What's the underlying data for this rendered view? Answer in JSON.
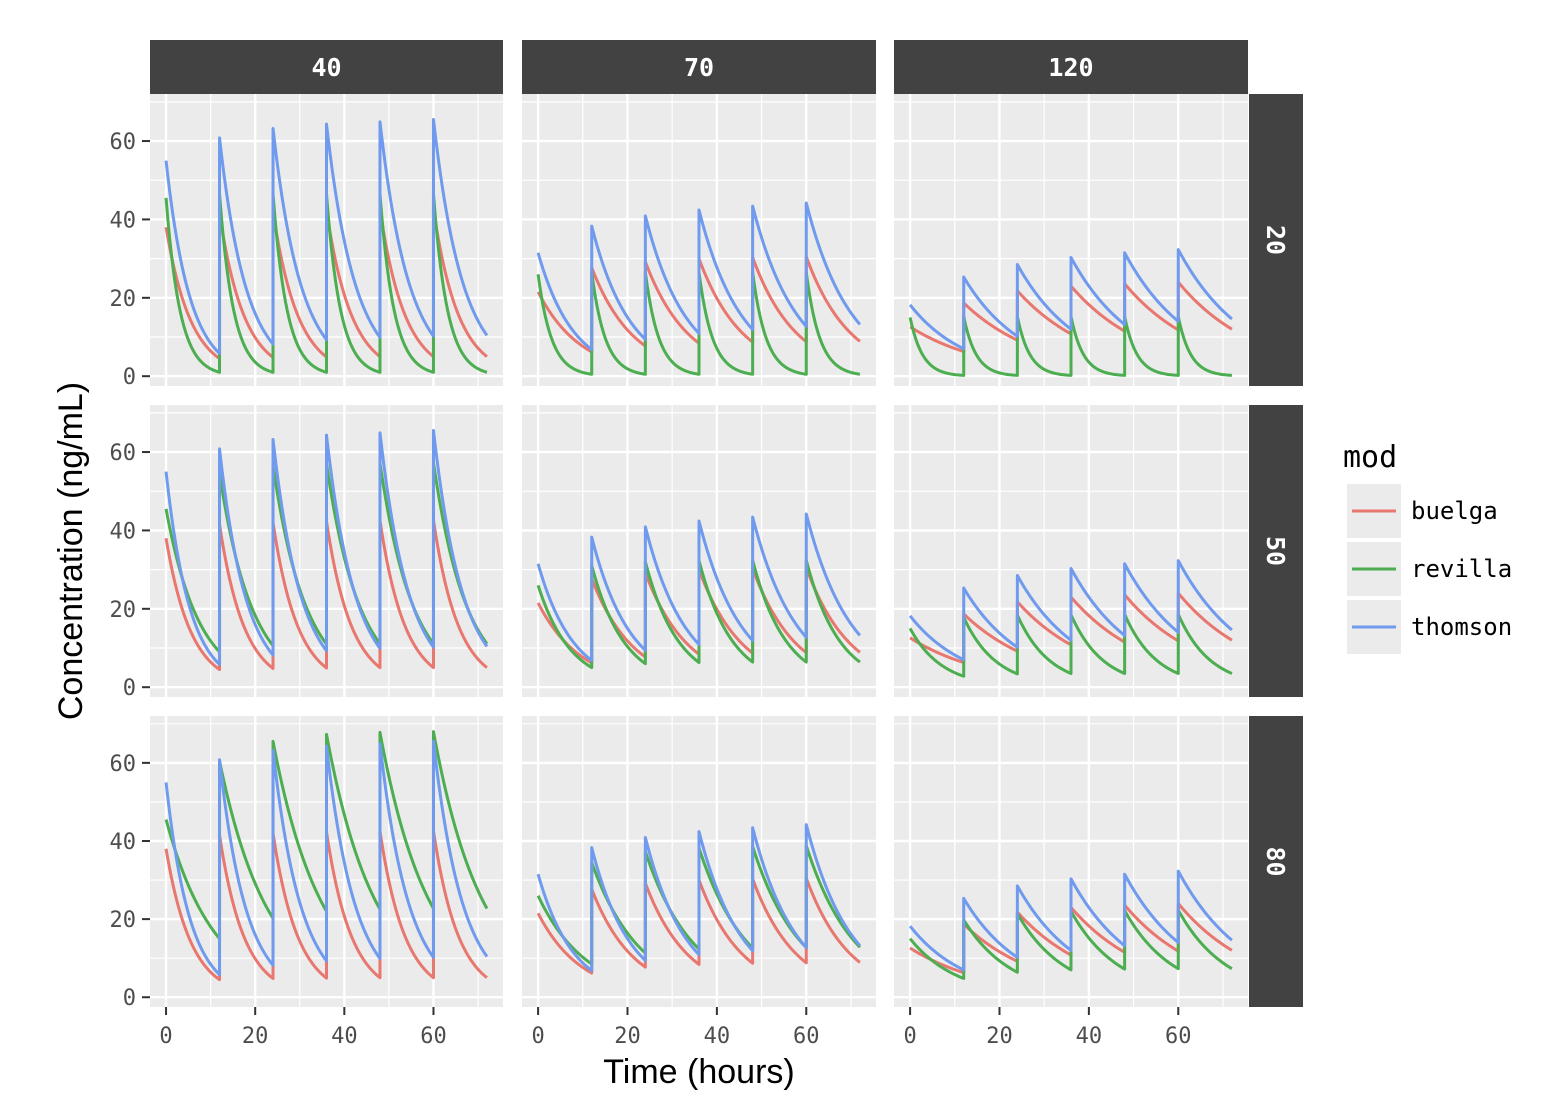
{
  "colors": {
    "buelga": "#e8776f",
    "revilla": "#4cae50",
    "thomson": "#6f9aee",
    "panel_bg": "#ebebeb",
    "grid": "#ffffff",
    "strip_bg": "#424242",
    "strip_text": "#ffffff",
    "tick_text": "#4d4d4d"
  },
  "chart_data": {
    "type": "line",
    "layout": "facet_grid",
    "title": "",
    "xlabel": "Time (hours)",
    "ylabel": "Concentration (ng/mL)",
    "col_strips": [
      "40",
      "70",
      "120"
    ],
    "row_strips": [
      "20",
      "50",
      "80"
    ],
    "x_ticks": [
      0,
      20,
      40,
      60
    ],
    "x_tick_labels": [
      "0",
      "20",
      "40",
      "60"
    ],
    "y_ticks": [
      0,
      20,
      40,
      60
    ],
    "y_tick_labels": [
      "0",
      "20",
      "40",
      "60"
    ],
    "xlim": [
      -3.6,
      75.6
    ],
    "ylim": [
      -2.5,
      72
    ],
    "grid": true,
    "legend": {
      "title": "mod",
      "placement": "right",
      "entries": [
        "buelga",
        "revilla",
        "thomson"
      ]
    },
    "dosing_interval_hours": 12,
    "x_end": 72,
    "description_of_series": "Each series is a repeated-dose profile: concentration jumps at each 12 h dose (t = 0, 12, 24, 36, 48, 60) and decays exponentially until the next dose; curves end at t = 72.",
    "series": [
      {
        "name": "buelga",
        "panel": "40 / 20",
        "initial_peak": 38,
        "peaks": [
          38,
          41.5,
          42,
          42.3,
          42.5,
          42.6
        ],
        "troughs": [
          4.5,
          4.8,
          4.9,
          5.0,
          5.0,
          5.0
        ]
      },
      {
        "name": "buelga",
        "panel": "40 / 50",
        "initial_peak": 38,
        "peaks": [
          38,
          41.5,
          42,
          42.3,
          42.5,
          42.6
        ],
        "troughs": [
          4.5,
          4.8,
          4.9,
          5.0,
          5.0,
          5.0
        ]
      },
      {
        "name": "buelga",
        "panel": "40 / 80",
        "initial_peak": 38,
        "peaks": [
          38,
          41.5,
          42,
          42.3,
          42.5,
          42.6
        ],
        "troughs": [
          4.5,
          4.8,
          4.9,
          5.0,
          5.0,
          5.0
        ]
      },
      {
        "name": "buelga",
        "panel": "70 / 20",
        "initial_peak": 21.5,
        "peaks": [
          21.5,
          27.7,
          29.2,
          30.0,
          30.3,
          30.5
        ],
        "troughs": [
          6.2,
          7.7,
          8.4,
          8.7,
          8.8,
          8.9
        ]
      },
      {
        "name": "buelga",
        "panel": "70 / 50",
        "initial_peak": 21.5,
        "peaks": [
          21.5,
          27.7,
          29.2,
          30.0,
          30.3,
          30.5
        ],
        "troughs": [
          6.2,
          7.7,
          8.4,
          8.7,
          8.8,
          8.9
        ]
      },
      {
        "name": "buelga",
        "panel": "70 / 80",
        "initial_peak": 21.5,
        "peaks": [
          21.5,
          27.7,
          29.2,
          30.0,
          30.3,
          30.5
        ],
        "troughs": [
          6.2,
          7.7,
          8.4,
          8.7,
          8.8,
          8.9
        ]
      },
      {
        "name": "buelga",
        "panel": "120 / 20",
        "initial_peak": 12.6,
        "peaks": [
          12.6,
          18.7,
          21.8,
          23.0,
          23.6,
          24.0
        ],
        "troughs": [
          6.3,
          9.2,
          10.8,
          11.5,
          11.8,
          12.0
        ]
      },
      {
        "name": "buelga",
        "panel": "120 / 50",
        "initial_peak": 12.6,
        "peaks": [
          12.6,
          18.7,
          21.8,
          23.0,
          23.6,
          24.0
        ],
        "troughs": [
          6.3,
          9.2,
          10.8,
          11.5,
          11.8,
          12.0
        ]
      },
      {
        "name": "buelga",
        "panel": "120 / 80",
        "initial_peak": 12.6,
        "peaks": [
          12.6,
          18.7,
          21.8,
          23.0,
          23.6,
          24.0
        ],
        "troughs": [
          6.3,
          9.2,
          10.8,
          11.5,
          11.8,
          12.0
        ]
      },
      {
        "name": "revilla",
        "panel": "40 / 20",
        "initial_peak": 45.5,
        "peaks": [
          45.5,
          46.5,
          46.5,
          46.5,
          46.5,
          46.5
        ],
        "troughs": [
          1.0,
          1.0,
          1.0,
          1.0,
          1.0,
          1.0
        ]
      },
      {
        "name": "revilla",
        "panel": "40 / 50",
        "initial_peak": 45.5,
        "peaks": [
          45.5,
          54.5,
          56.5,
          57.0,
          57.2,
          57.3
        ],
        "troughs": [
          9.0,
          10.6,
          11.0,
          11.1,
          11.1,
          11.1
        ]
      },
      {
        "name": "revilla",
        "panel": "40 / 80",
        "initial_peak": 45.5,
        "peaks": [
          45.5,
          60.5,
          65.5,
          67.3,
          67.8,
          68.0
        ],
        "troughs": [
          15.0,
          20.2,
          22.0,
          22.5,
          22.7,
          22.7
        ]
      },
      {
        "name": "revilla",
        "panel": "70 / 20",
        "initial_peak": 26,
        "peaks": [
          26,
          26.5,
          26.5,
          26.5,
          26.5,
          26.5
        ],
        "troughs": [
          0.5,
          0.5,
          0.5,
          0.5,
          0.5,
          0.5
        ]
      },
      {
        "name": "revilla",
        "panel": "70 / 50",
        "initial_peak": 26,
        "peaks": [
          26,
          31.0,
          32.0,
          32.3,
          32.4,
          32.4
        ],
        "troughs": [
          5.0,
          6.0,
          6.3,
          6.4,
          6.4,
          6.4
        ]
      },
      {
        "name": "revilla",
        "panel": "70 / 80",
        "initial_peak": 26,
        "peaks": [
          26,
          34.5,
          37.3,
          38.2,
          38.6,
          38.8
        ],
        "troughs": [
          8.5,
          11.3,
          12.3,
          12.6,
          12.7,
          12.8
        ]
      },
      {
        "name": "revilla",
        "panel": "120 / 20",
        "initial_peak": 15,
        "peaks": [
          15,
          15.2,
          15.2,
          15.2,
          15.2,
          15.2
        ],
        "troughs": [
          0.2,
          0.2,
          0.2,
          0.2,
          0.2,
          0.2
        ]
      },
      {
        "name": "revilla",
        "panel": "120 / 50",
        "initial_peak": 15,
        "peaks": [
          15,
          17.8,
          18.4,
          18.5,
          18.6,
          18.6
        ],
        "troughs": [
          2.8,
          3.4,
          3.5,
          3.5,
          3.5,
          3.5
        ]
      },
      {
        "name": "revilla",
        "panel": "120 / 80",
        "initial_peak": 15,
        "peaks": [
          15,
          19.8,
          21.4,
          22.0,
          22.2,
          22.3
        ],
        "troughs": [
          4.8,
          6.4,
          7.0,
          7.2,
          7.3,
          7.3
        ]
      },
      {
        "name": "thomson",
        "panel": "40 / 20",
        "initial_peak": 55,
        "peaks": [
          55,
          60.8,
          63.2,
          64.3,
          64.9,
          65.5
        ],
        "troughs": [
          5.8,
          8.2,
          9.3,
          9.9,
          10.2,
          10.4
        ]
      },
      {
        "name": "thomson",
        "panel": "40 / 50",
        "initial_peak": 55,
        "peaks": [
          55,
          60.8,
          63.2,
          64.3,
          64.9,
          65.5
        ],
        "troughs": [
          5.8,
          8.2,
          9.3,
          9.9,
          10.2,
          10.4
        ]
      },
      {
        "name": "thomson",
        "panel": "40 / 80",
        "initial_peak": 55,
        "peaks": [
          55,
          60.8,
          63.2,
          64.3,
          64.9,
          65.5
        ],
        "troughs": [
          5.8,
          8.2,
          9.3,
          9.9,
          10.2,
          10.4
        ]
      },
      {
        "name": "thomson",
        "panel": "70 / 20",
        "initial_peak": 31.5,
        "peaks": [
          31.5,
          38.3,
          40.9,
          42.4,
          43.4,
          44.2
        ],
        "troughs": [
          6.8,
          9.4,
          10.9,
          11.9,
          12.7,
          13.2
        ]
      },
      {
        "name": "thomson",
        "panel": "70 / 50",
        "initial_peak": 31.5,
        "peaks": [
          31.5,
          38.3,
          40.9,
          42.4,
          43.4,
          44.2
        ],
        "troughs": [
          6.8,
          9.4,
          10.9,
          11.9,
          12.7,
          13.2
        ]
      },
      {
        "name": "thomson",
        "panel": "70 / 80",
        "initial_peak": 31.5,
        "peaks": [
          31.5,
          38.3,
          40.9,
          42.4,
          43.4,
          44.2
        ],
        "troughs": [
          6.8,
          9.4,
          10.9,
          11.9,
          12.7,
          13.2
        ]
      },
      {
        "name": "thomson",
        "panel": "120 / 20",
        "initial_peak": 18.2,
        "peaks": [
          18.2,
          25.3,
          28.5,
          30.3,
          31.5,
          32.3
        ],
        "troughs": [
          7.0,
          10.2,
          12.0,
          13.2,
          14.0,
          14.6
        ]
      },
      {
        "name": "thomson",
        "panel": "120 / 50",
        "initial_peak": 18.2,
        "peaks": [
          18.2,
          25.3,
          28.5,
          30.3,
          31.5,
          32.3
        ],
        "troughs": [
          7.0,
          10.2,
          12.0,
          13.2,
          14.0,
          14.6
        ]
      },
      {
        "name": "thomson",
        "panel": "120 / 80",
        "initial_peak": 18.2,
        "peaks": [
          18.2,
          25.3,
          28.5,
          30.3,
          31.5,
          32.3
        ],
        "troughs": [
          7.0,
          10.2,
          12.0,
          13.2,
          14.0,
          14.6
        ]
      }
    ]
  }
}
